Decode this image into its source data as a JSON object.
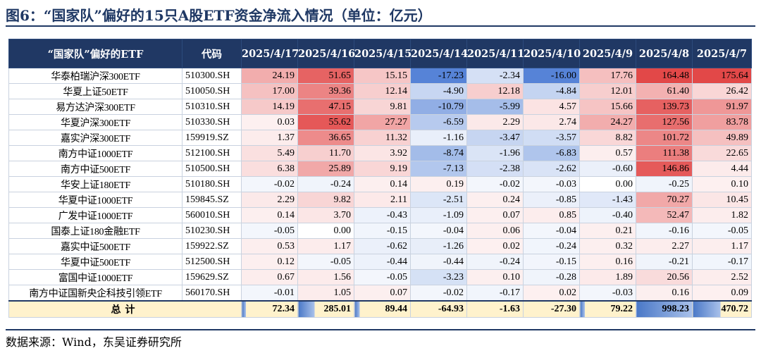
{
  "title": "图6：“国家队”偏好的15只A股ETF资金净流入情况（单位：亿元）",
  "table": {
    "headers": [
      "“国家队”偏好的ETF",
      "代码",
      "2025/4/17",
      "2025/4/16",
      "2025/4/15",
      "2025/4/14",
      "2025/4/11",
      "2025/4/10",
      "2025/4/9",
      "2025/4/8",
      "2025/4/7"
    ],
    "rows": [
      {
        "name": "华泰柏瑞沪深300ETF",
        "code": "510300.SH",
        "values": [
          "24.19",
          "51.65",
          "15.15",
          "-17.23",
          "-2.34",
          "-16.00",
          "17.76",
          "164.48",
          "175.64"
        ]
      },
      {
        "name": "华夏上证50ETF",
        "code": "510050.SH",
        "values": [
          "17.00",
          "39.36",
          "12.14",
          "-4.90",
          "12.18",
          "-4.84",
          "12.01",
          "61.40",
          "26.42"
        ]
      },
      {
        "name": "易方达沪深300ETF",
        "code": "510310.SH",
        "values": [
          "14.19",
          "47.15",
          "9.81",
          "-10.79",
          "-5.99",
          "4.57",
          "15.66",
          "139.73",
          "91.97"
        ]
      },
      {
        "name": "华夏沪深300ETF",
        "code": "510330.SH",
        "values": [
          "0.03",
          "55.62",
          "27.27",
          "-6.59",
          "2.29",
          "2.74",
          "24.27",
          "127.56",
          "83.78"
        ]
      },
      {
        "name": "嘉实沪深300ETF",
        "code": "159919.SZ",
        "values": [
          "1.37",
          "36.65",
          "11.32",
          "-1.16",
          "-3.47",
          "-3.57",
          "8.82",
          "101.72",
          "49.89"
        ]
      },
      {
        "name": "南方中证1000ETF",
        "code": "512100.SH",
        "values": [
          "5.49",
          "11.70",
          "3.92",
          "-8.74",
          "-1.96",
          "-6.83",
          "0.57",
          "111.38",
          "22.65"
        ]
      },
      {
        "name": "南方中证500ETF",
        "code": "510500.SH",
        "values": [
          "6.38",
          "25.89",
          "9.19",
          "-7.13",
          "-2.38",
          "-2.62",
          "-0.60",
          "146.86",
          "4.44"
        ]
      },
      {
        "name": "华安上证180ETF",
        "code": "510180.SH",
        "values": [
          "-0.02",
          "-0.24",
          "0.14",
          "0.19",
          "-0.02",
          "-0.03",
          "0.00",
          "-0.25",
          "0.10"
        ]
      },
      {
        "name": "华夏中证1000ETF",
        "code": "159845.SZ",
        "values": [
          "2.29",
          "9.82",
          "2.11",
          "-2.51",
          "0.24",
          "-0.85",
          "-1.43",
          "70.27",
          "10.45"
        ]
      },
      {
        "name": "广发中证1000ETF",
        "code": "560010.SH",
        "values": [
          "0.14",
          "3.70",
          "-0.43",
          "-1.09",
          "0.07",
          "0.85",
          "-0.40",
          "52.47",
          "1.82"
        ]
      },
      {
        "name": "国泰上证180金融ETF",
        "code": "510230.SH",
        "values": [
          "-0.05",
          "0.00",
          "-0.15",
          "-0.04",
          "0.06",
          "-0.04",
          "0.21",
          "-0.16",
          "-0.05"
        ]
      },
      {
        "name": "嘉实中证500ETF",
        "code": "159922.SZ",
        "values": [
          "0.53",
          "1.17",
          "-0.62",
          "-1.26",
          "0.02",
          "-0.24",
          "0.32",
          "2.27",
          "1.17"
        ]
      },
      {
        "name": "华夏中证500ETF",
        "code": "512500.SH",
        "values": [
          "0.12",
          "-0.05",
          "-0.44",
          "-0.44",
          "-0.24",
          "-0.15",
          "0.16",
          "-0.21",
          "-0.17"
        ]
      },
      {
        "name": "富国中证1000ETF",
        "code": "159629.SZ",
        "values": [
          "0.67",
          "1.56",
          "-0.05",
          "-3.23",
          "0.10",
          "-0.28",
          "1.89",
          "20.56",
          "2.52"
        ]
      },
      {
        "name": "南方中证国新央企科技引领ETF",
        "code": "560170.SH",
        "values": [
          "-0.01",
          "1.05",
          "0.07",
          "-0.02",
          "-0.17",
          "0.02",
          "-0.03",
          "0.16",
          "0.09"
        ]
      }
    ],
    "total": {
      "label": "总计",
      "values": [
        "72.34",
        "285.01",
        "89.44",
        "-64.93",
        "-1.63",
        "-27.30",
        "79.22",
        "998.23",
        "470.72"
      ]
    }
  },
  "colors": {
    "header_bg": "#203864",
    "title": "#1f3864",
    "total_bg": "#fff2cc",
    "total_bar": "#4a78c7",
    "positive": "#e03a3a",
    "negative": "#3a6fd0"
  },
  "source": "数据来源：Wind，东吴证券研究所"
}
